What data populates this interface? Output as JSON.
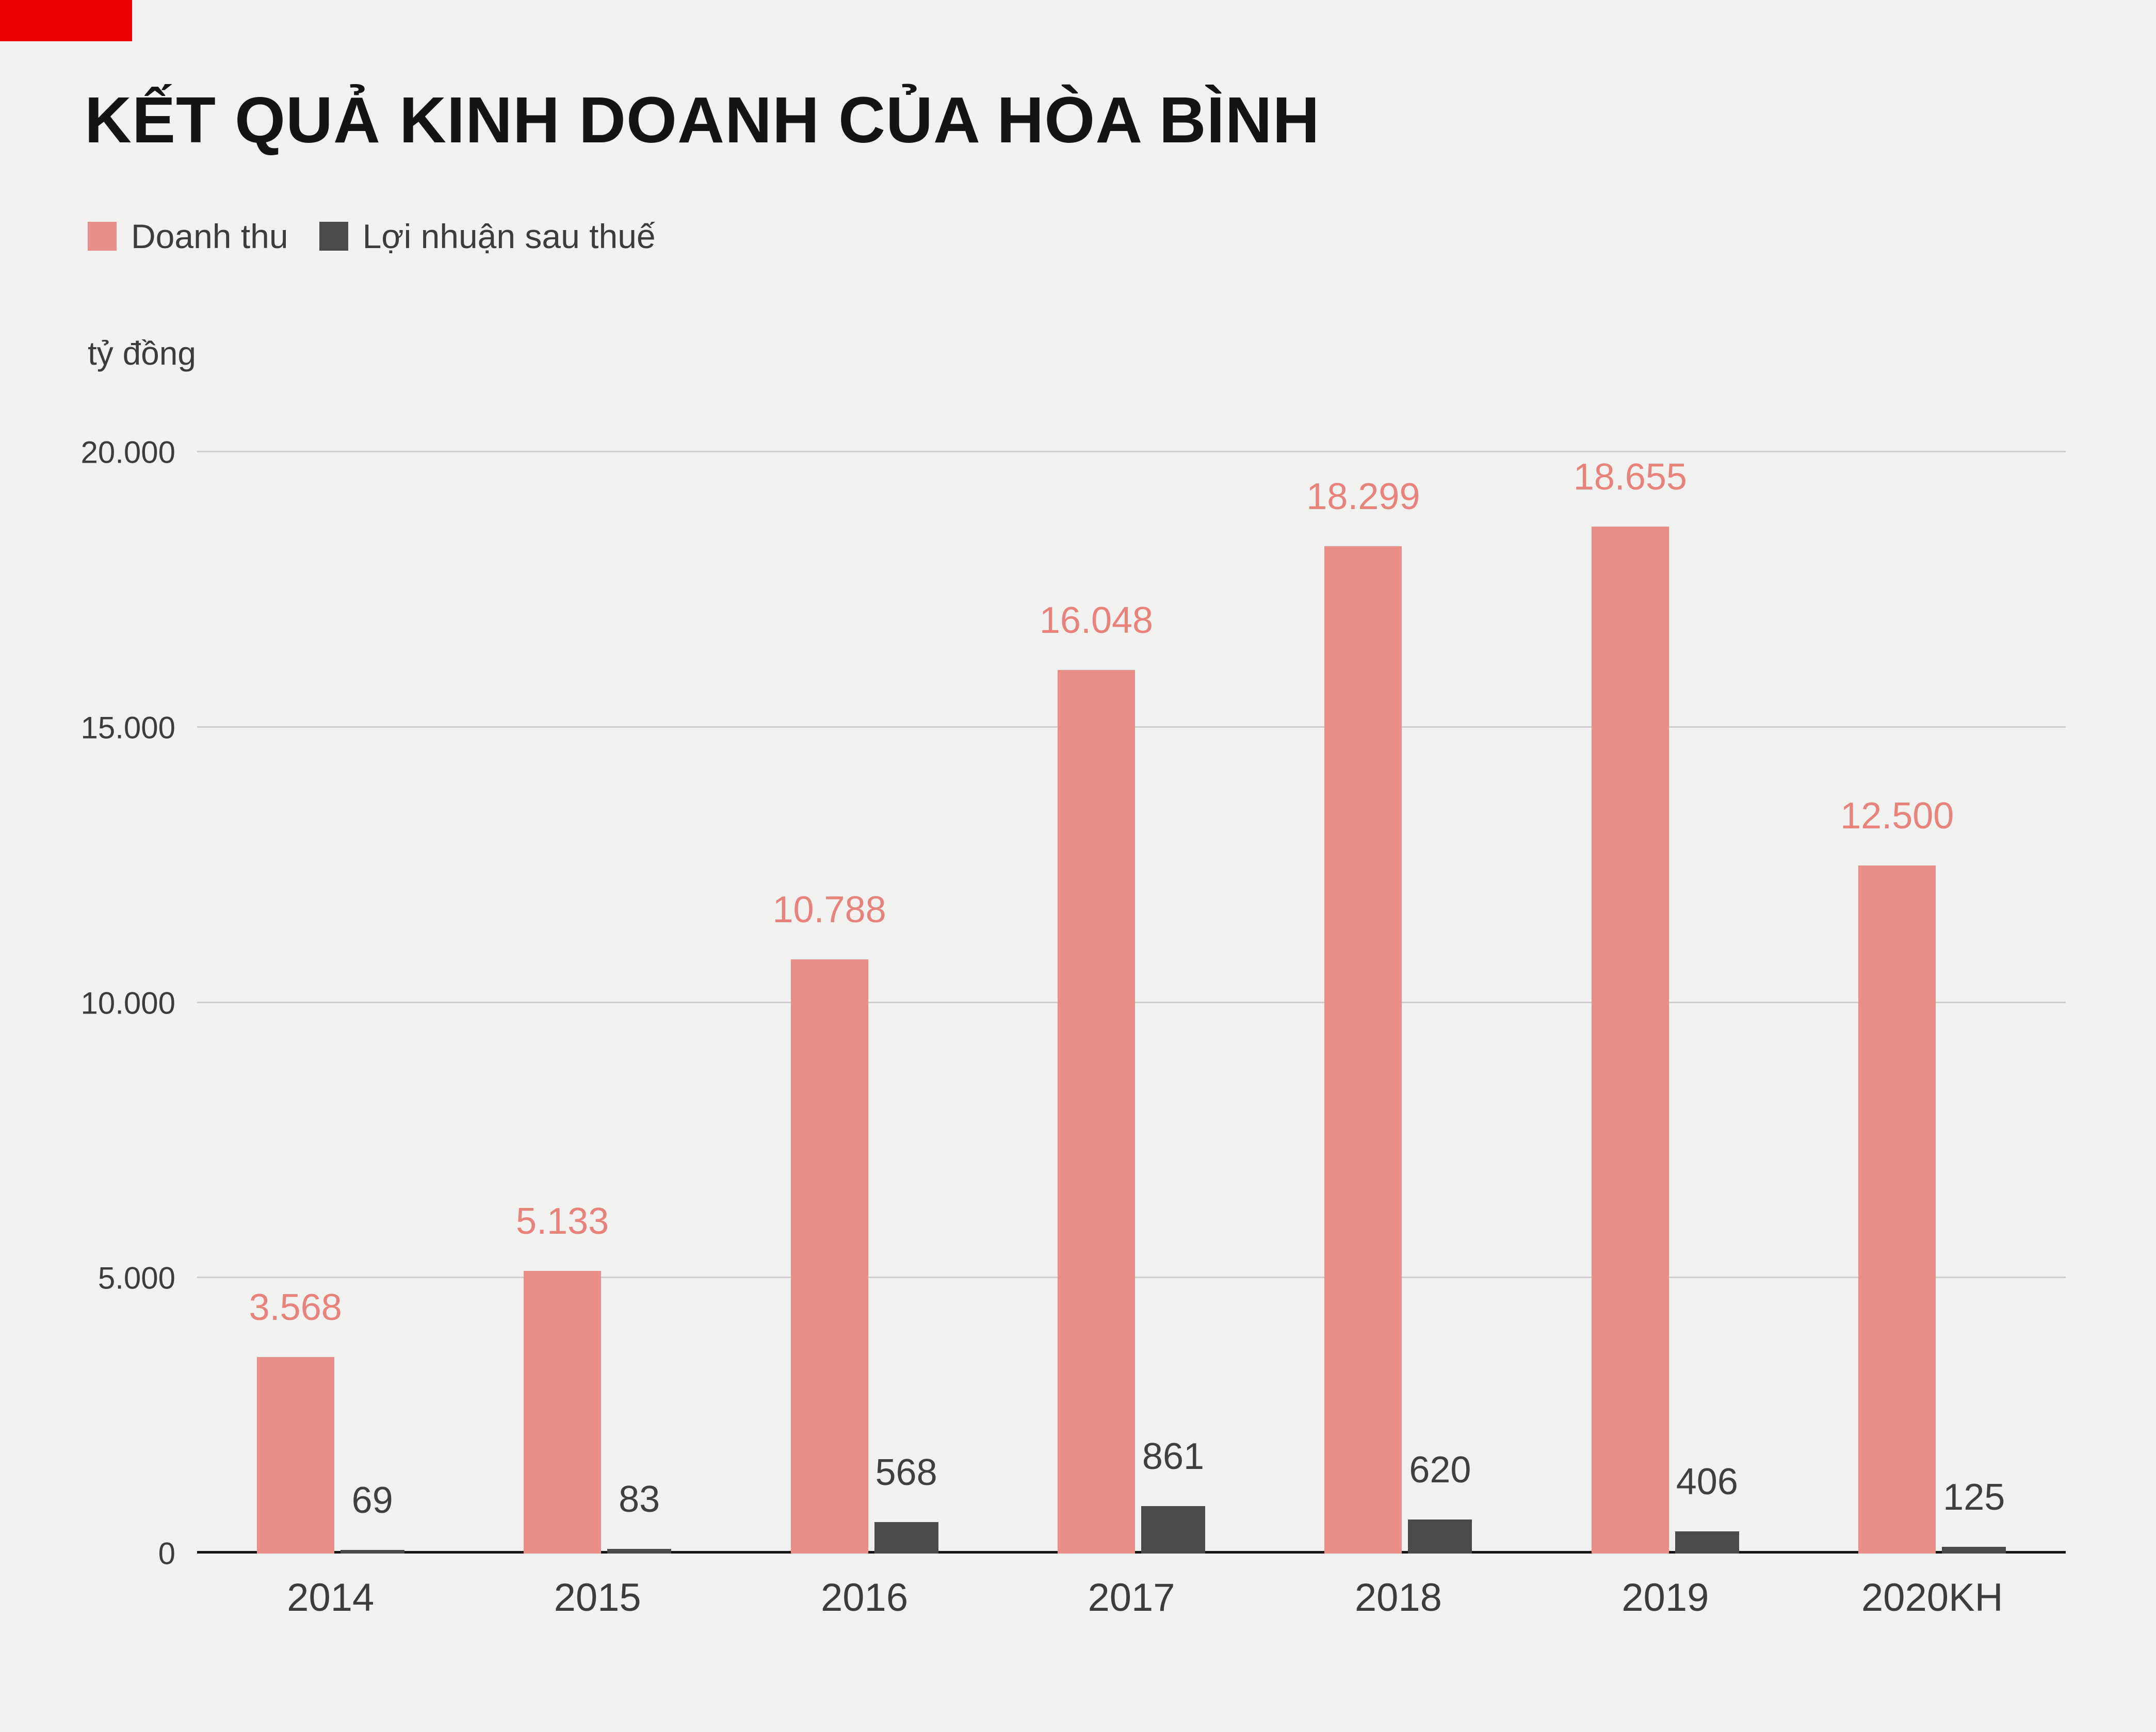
{
  "colors": {
    "background": "#f1f1f0",
    "corner_block": "#ec0000",
    "grid_line": "#cfcecd",
    "axis_line": "#161616",
    "text": "#3c3c3c"
  },
  "chart_data": {
    "type": "bar",
    "title": "KẾT QUẢ KINH DOANH CỦA HÒA BÌNH",
    "unit_label": "tỷ đồng",
    "categories": [
      "2014",
      "2015",
      "2016",
      "2017",
      "2018",
      "2019",
      "2020KH"
    ],
    "series": [
      {
        "name": "Doanh thu",
        "color": "#e98f88",
        "label_color": "#e8837c",
        "values": [
          3568,
          5133,
          10788,
          16048,
          18299,
          18655,
          12500
        ],
        "value_labels": [
          "3.568",
          "5.133",
          "10.788",
          "16.048",
          "18.299",
          "18.655",
          "12.500"
        ]
      },
      {
        "name": "Lợi nhuận sau thuế",
        "color": "#4a4a4a",
        "label_color": "#3f3f3f",
        "values": [
          69,
          83,
          568,
          861,
          620,
          406,
          125
        ],
        "value_labels": [
          "69",
          "83",
          "568",
          "861",
          "620",
          "406",
          "125"
        ]
      }
    ],
    "ylim": [
      0,
      20000
    ],
    "yticks": [
      0,
      5000,
      10000,
      15000,
      20000
    ],
    "ytick_labels": [
      "0",
      "5.000",
      "10.000",
      "15.000",
      "20.000"
    ],
    "grid": true,
    "legend_position": "top-left"
  }
}
